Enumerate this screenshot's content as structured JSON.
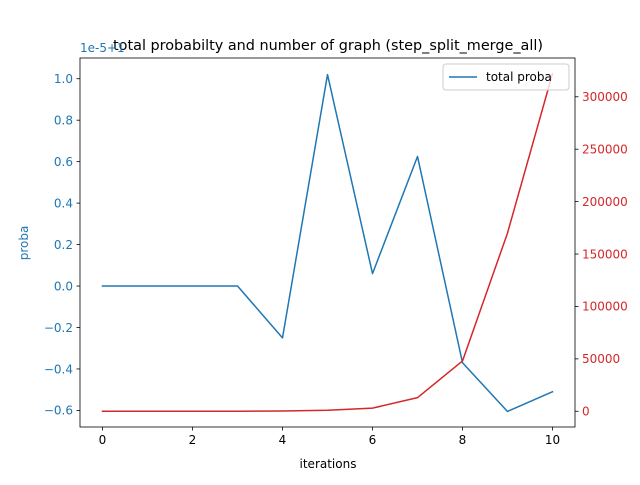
{
  "chart_data": {
    "type": "line",
    "title": "total probabilty and number of graph (step_split_merge_all)",
    "xlabel": "iterations",
    "ylabel_left": "proba",
    "ylabel_right": "",
    "offset_text": "1e-5+1",
    "x": [
      0,
      1,
      2,
      3,
      4,
      5,
      6,
      7,
      8,
      9,
      10
    ],
    "xlim": [
      -0.5,
      10.5
    ],
    "ylim_left": [
      -0.68,
      1.1
    ],
    "ylim_right": [
      -15000,
      337000
    ],
    "x_ticks": [
      0,
      2,
      4,
      6,
      8,
      10
    ],
    "y_ticks_left": [
      -0.6,
      -0.4,
      -0.2,
      0.0,
      0.2,
      0.4,
      0.6,
      0.8,
      1.0
    ],
    "y_ticks_right": [
      0,
      50000,
      100000,
      150000,
      200000,
      250000,
      300000
    ],
    "legend_position": "top-right",
    "series": [
      {
        "name": "total proba",
        "axis": "left",
        "color": "#1f77b4",
        "values": [
          0.0,
          0.0,
          0.0,
          0.0,
          -0.25,
          1.02,
          0.06,
          0.625,
          -0.37,
          -0.605,
          -0.51
        ]
      },
      {
        "axis": "right",
        "color": "#d62728",
        "values": [
          0,
          0,
          0,
          40,
          300,
          1000,
          3000,
          13000,
          48000,
          170000,
          322000
        ]
      }
    ],
    "colors": {
      "left_axis": "#1f77b4",
      "right_axis": "#d62728",
      "frame": "#000000"
    }
  }
}
